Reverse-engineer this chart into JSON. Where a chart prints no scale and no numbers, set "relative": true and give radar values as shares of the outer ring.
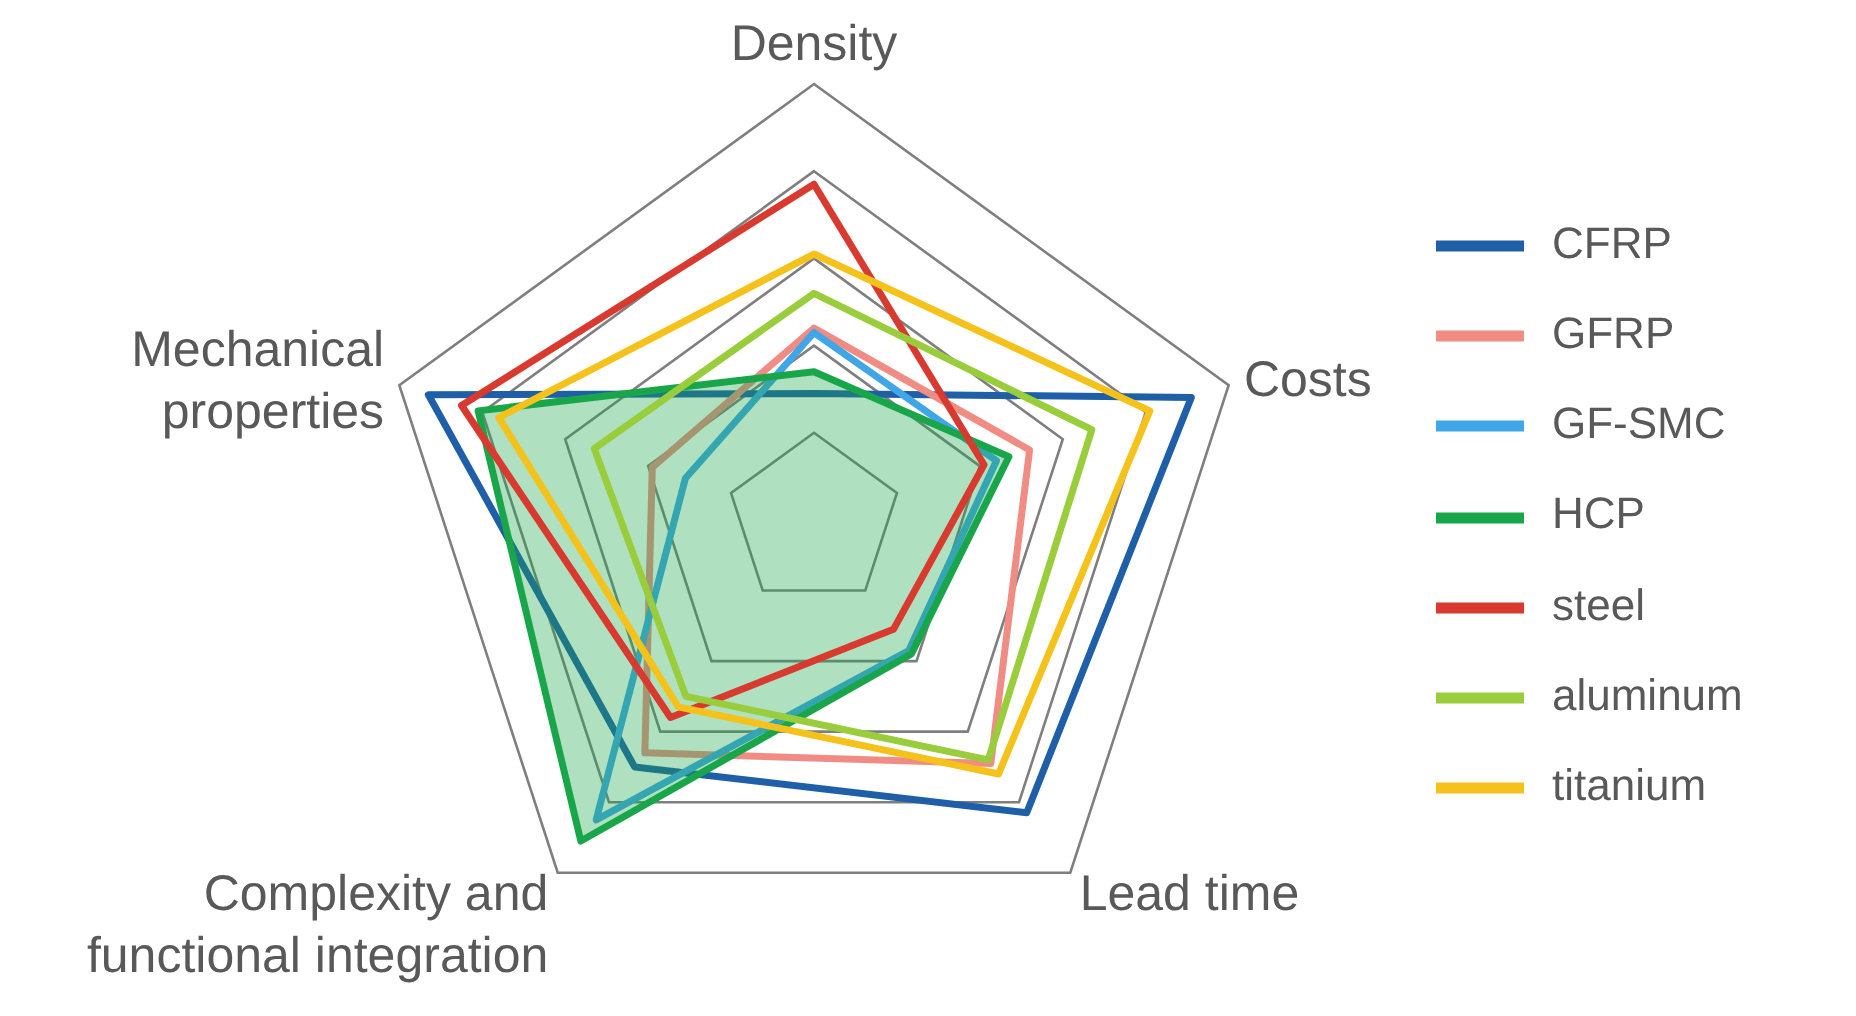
{
  "chart_data": {
    "type": "radar",
    "relative": true,
    "categories": [
      "Density",
      "Costs",
      "Lead time",
      "Complexity and functional integration",
      "Mechanical properties"
    ],
    "legend": "right",
    "grid": true,
    "marker": "none",
    "series": [
      {
        "name": "CFRP",
        "color": "#1f5fa8",
        "values": [
          0.29,
          0.91,
          0.83,
          0.7,
          0.93
        ]
      },
      {
        "name": "GFRP",
        "color": "#f08c84",
        "values": [
          0.44,
          0.52,
          0.69,
          0.66,
          0.39
        ]
      },
      {
        "name": "GF-SMC",
        "color": "#41a6e8",
        "values": [
          0.43,
          0.44,
          0.37,
          0.85,
          0.31
        ]
      },
      {
        "name": "HCP",
        "color": "#19a64a",
        "type": "area",
        "values": [
          0.34,
          0.47,
          0.38,
          0.91,
          0.81
        ]
      },
      {
        "name": "steel",
        "color": "#d93a2f",
        "values": [
          0.77,
          0.41,
          0.31,
          0.56,
          0.85
        ]
      },
      {
        "name": "aluminum",
        "color": "#9acd3c",
        "values": [
          0.52,
          0.67,
          0.68,
          0.5,
          0.53
        ]
      },
      {
        "name": "titanium",
        "color": "#f5c21b",
        "values": [
          0.61,
          0.81,
          0.72,
          0.53,
          0.76
        ]
      }
    ]
  }
}
